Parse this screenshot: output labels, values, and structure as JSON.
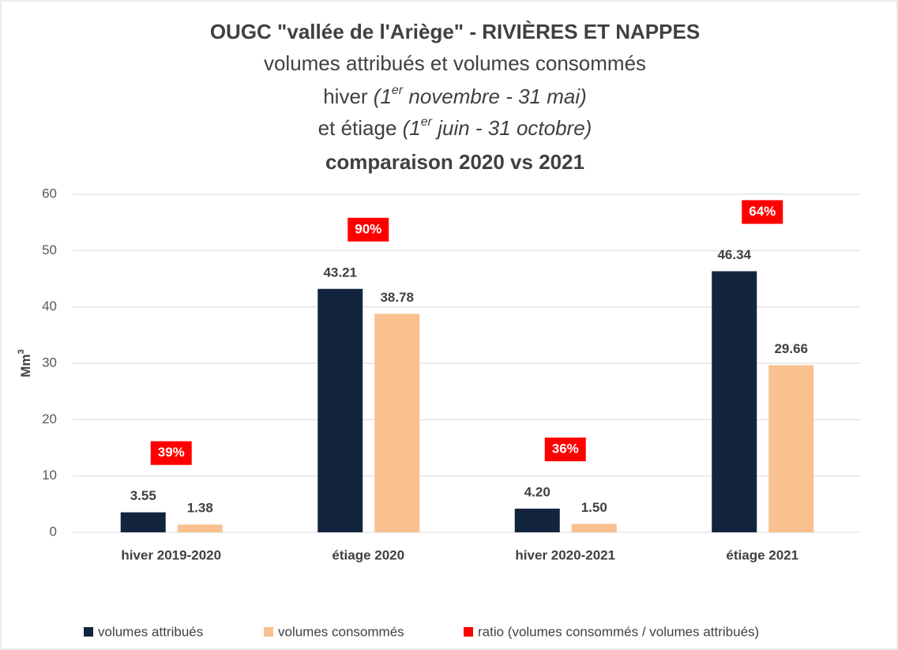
{
  "chart_data": {
    "type": "bar",
    "title": "OUGC \"vallée de l'Ariège\" - RIVIÈRES ET NAPPES",
    "subtitle": [
      "volumes attribués et volumes consommés",
      [
        "hiver ",
        "(1",
        "er",
        " novembre - 31 mai)"
      ],
      [
        "et étiage  ",
        "(1",
        "er",
        " juin - 31 octobre)"
      ],
      "comparaison 2020 vs 2021"
    ],
    "ylabel": [
      "Mm",
      "3"
    ],
    "categories": [
      "hiver 2019-2020",
      "étiage 2020",
      "hiver 2020-2021",
      "étiage 2021"
    ],
    "series": [
      {
        "name": "volumes attribués",
        "color": "#13243f",
        "values": [
          3.55,
          43.21,
          4.2,
          46.34
        ],
        "value_labels": [
          "3.55",
          "43.21",
          "4.20",
          "46.34"
        ]
      },
      {
        "name": "volumes consommés",
        "color": "#f8c18f",
        "values": [
          1.38,
          38.78,
          1.5,
          29.66
        ],
        "value_labels": [
          "1.38",
          "38.78",
          "1.50",
          "29.66"
        ]
      },
      {
        "name": "ratio (volumes consommés / volumes attribués)",
        "color": "#ff0000",
        "values": [
          39,
          90,
          36,
          64
        ],
        "value_labels": [
          "39%",
          "90%",
          "36%",
          "64%"
        ]
      }
    ],
    "ylim": [
      0,
      60
    ],
    "yticks": [
      0,
      10,
      20,
      30,
      40,
      50,
      60
    ],
    "grid": true
  }
}
